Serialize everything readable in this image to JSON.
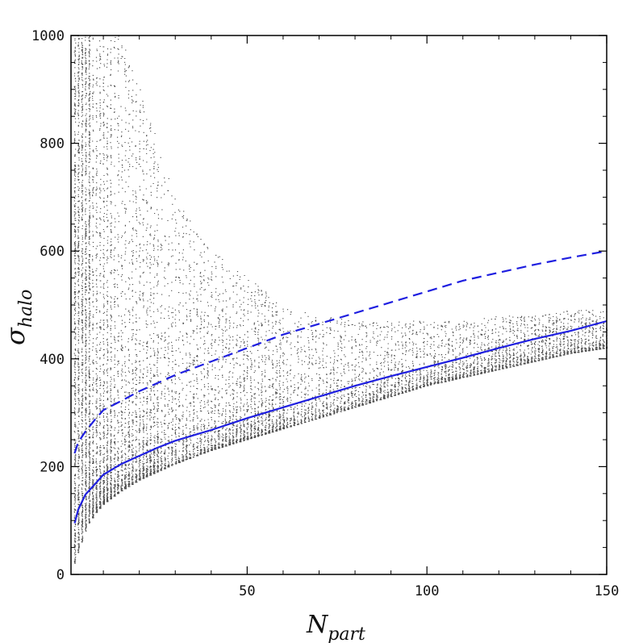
{
  "chart_data": {
    "type": "scatter",
    "title": "",
    "xlabel": {
      "symbol": "N",
      "subscript": "part"
    },
    "ylabel": {
      "symbol": "σ",
      "subscript": "halo"
    },
    "xlim": [
      1,
      150
    ],
    "ylim": [
      0,
      1000
    ],
    "x_ticks": [
      50,
      100,
      150
    ],
    "y_ticks": [
      0,
      200,
      400,
      600,
      800,
      1000
    ],
    "grid": false,
    "legend": "none",
    "series": [
      {
        "style": "solid",
        "color": "#1f1fe0",
        "x": [
          2,
          3,
          5,
          8,
          10,
          15,
          20,
          25,
          30,
          40,
          50,
          60,
          70,
          80,
          90,
          100,
          110,
          120,
          130,
          140,
          150
        ],
        "y": [
          95,
          120,
          148,
          170,
          185,
          205,
          220,
          235,
          248,
          268,
          290,
          310,
          330,
          350,
          368,
          385,
          402,
          420,
          437,
          452,
          470
        ]
      },
      {
        "style": "dashed",
        "color": "#1f1fe0",
        "x": [
          2,
          3,
          5,
          8,
          10,
          15,
          20,
          25,
          30,
          40,
          50,
          60,
          70,
          80,
          90,
          100,
          110,
          120,
          130,
          140,
          150
        ],
        "y": [
          225,
          245,
          265,
          290,
          305,
          322,
          340,
          355,
          370,
          395,
          420,
          445,
          465,
          485,
          505,
          525,
          545,
          560,
          575,
          588,
          600
        ]
      }
    ],
    "scatter_cloud": {
      "color": "#000000",
      "description_points": {
        "x": [
          2,
          3,
          4,
          5,
          6,
          8,
          10,
          12,
          15,
          20,
          25,
          30,
          40,
          50,
          60,
          70,
          80,
          90,
          100,
          110,
          120,
          130,
          140,
          150
        ],
        "y_lower": [
          20,
          40,
          60,
          80,
          95,
          115,
          130,
          140,
          155,
          175,
          190,
          205,
          230,
          250,
          270,
          290,
          310,
          330,
          350,
          365,
          380,
          395,
          410,
          420
        ],
        "y_upper": [
          1000,
          1000,
          1000,
          1000,
          1000,
          1000,
          1000,
          1000,
          1000,
          900,
          800,
          700,
          600,
          550,
          500,
          480,
          470,
          470,
          470,
          470,
          480,
          480,
          490,
          490
        ]
      }
    }
  }
}
